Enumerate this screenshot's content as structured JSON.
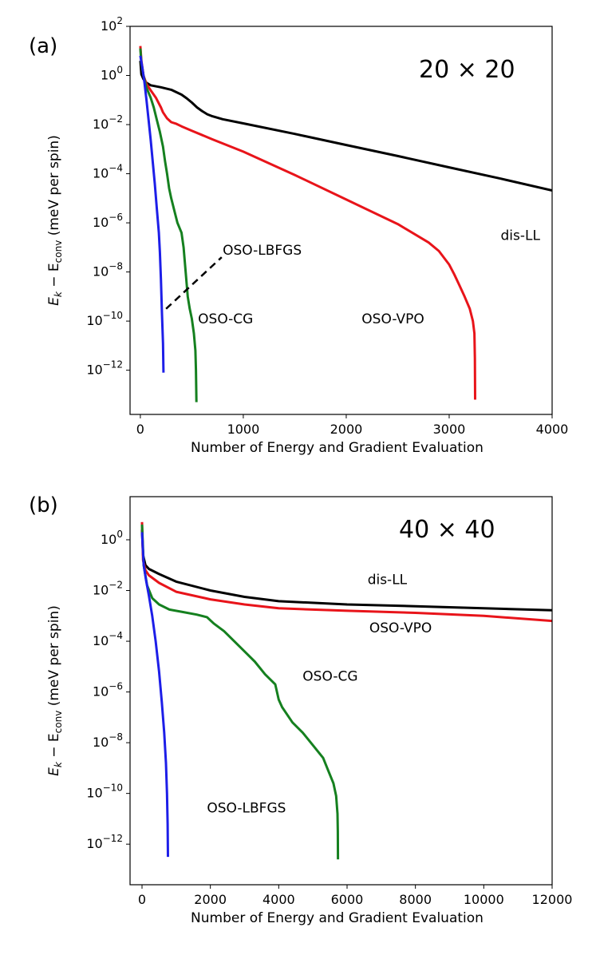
{
  "chart_data": [
    {
      "panel_label": "(a)",
      "type": "line",
      "title": "",
      "inset_text": "20 × 20",
      "xlabel": "Number of Energy and Gradient Evaluation",
      "ylabel": "E_k − E_conv (meV per spin)",
      "ylabel_parts": {
        "E": "E",
        "k": "k",
        "minus": " − E",
        "conv": "conv",
        "unit": " (meV per spin)"
      },
      "y_scale": "log",
      "xlim": [
        -100,
        4000
      ],
      "ylim_log10": [
        -13.8,
        2
      ],
      "x_ticks": [
        0,
        1000,
        2000,
        3000,
        4000
      ],
      "y_ticks": [
        {
          "base": "10",
          "exp": "2",
          "v": 2
        },
        {
          "base": "10",
          "exp": "0",
          "v": 0
        },
        {
          "base": "10",
          "exp": "−2",
          "v": -2
        },
        {
          "base": "10",
          "exp": "−4",
          "v": -4
        },
        {
          "base": "10",
          "exp": "−6",
          "v": -6
        },
        {
          "base": "10",
          "exp": "−8",
          "v": -8
        },
        {
          "base": "10",
          "exp": "−10",
          "v": -10
        },
        {
          "base": "10",
          "exp": "−12",
          "v": -12
        }
      ],
      "series": [
        {
          "name": "dis-LL",
          "color": "#000000",
          "points": [
            [
              0,
              0.6
            ],
            [
              10,
              0.05
            ],
            [
              30,
              -0.15
            ],
            [
              60,
              -0.3
            ],
            [
              100,
              -0.4
            ],
            [
              200,
              -0.48
            ],
            [
              300,
              -0.58
            ],
            [
              400,
              -0.78
            ],
            [
              450,
              -0.93
            ],
            [
              500,
              -1.1
            ],
            [
              550,
              -1.3
            ],
            [
              600,
              -1.45
            ],
            [
              650,
              -1.58
            ],
            [
              700,
              -1.66
            ],
            [
              800,
              -1.78
            ],
            [
              1000,
              -1.95
            ],
            [
              1500,
              -2.38
            ],
            [
              2000,
              -2.83
            ],
            [
              2500,
              -3.28
            ],
            [
              3000,
              -3.74
            ],
            [
              3500,
              -4.2
            ],
            [
              4000,
              -4.68
            ]
          ]
        },
        {
          "name": "OSO-VPO",
          "color": "#e8141a",
          "points": [
            [
              0,
              1.2
            ],
            [
              10,
              0.6
            ],
            [
              30,
              0.0
            ],
            [
              60,
              -0.35
            ],
            [
              100,
              -0.6
            ],
            [
              150,
              -0.9
            ],
            [
              200,
              -1.3
            ],
            [
              220,
              -1.5
            ],
            [
              260,
              -1.75
            ],
            [
              300,
              -1.9
            ],
            [
              350,
              -1.97
            ],
            [
              400,
              -2.07
            ],
            [
              500,
              -2.25
            ],
            [
              700,
              -2.6
            ],
            [
              1000,
              -3.1
            ],
            [
              1500,
              -4.05
            ],
            [
              2000,
              -5.05
            ],
            [
              2500,
              -6.05
            ],
            [
              2800,
              -6.8
            ],
            [
              2900,
              -7.15
            ],
            [
              3000,
              -7.7
            ],
            [
              3050,
              -8.1
            ],
            [
              3100,
              -8.55
            ],
            [
              3150,
              -9.0
            ],
            [
              3200,
              -9.5
            ],
            [
              3230,
              -10.0
            ],
            [
              3245,
              -10.5
            ],
            [
              3250,
              -11.5
            ],
            [
              3252,
              -13.2
            ]
          ]
        },
        {
          "name": "OSO-CG",
          "color": "#15801f",
          "points": [
            [
              0,
              1.1
            ],
            [
              10,
              0.5
            ],
            [
              30,
              0.0
            ],
            [
              60,
              -0.5
            ],
            [
              100,
              -0.9
            ],
            [
              130,
              -1.3
            ],
            [
              160,
              -1.8
            ],
            [
              190,
              -2.3
            ],
            [
              220,
              -2.9
            ],
            [
              240,
              -3.5
            ],
            [
              260,
              -4.0
            ],
            [
              280,
              -4.6
            ],
            [
              300,
              -5.0
            ],
            [
              330,
              -5.5
            ],
            [
              360,
              -6.0
            ],
            [
              400,
              -6.4
            ],
            [
              420,
              -7.0
            ],
            [
              430,
              -7.5
            ],
            [
              440,
              -8.0
            ],
            [
              450,
              -8.5
            ],
            [
              460,
              -9.0
            ],
            [
              480,
              -9.5
            ],
            [
              500,
              -9.9
            ],
            [
              520,
              -10.5
            ],
            [
              535,
              -11.2
            ],
            [
              540,
              -12.0
            ],
            [
              545,
              -13.3
            ]
          ]
        },
        {
          "name": "OSO-LBFGS",
          "color": "#1d1ee8",
          "points": [
            [
              0,
              0.8
            ],
            [
              20,
              0.3
            ],
            [
              40,
              -0.3
            ],
            [
              60,
              -1.0
            ],
            [
              80,
              -1.8
            ],
            [
              100,
              -2.6
            ],
            [
              120,
              -3.5
            ],
            [
              140,
              -4.4
            ],
            [
              160,
              -5.4
            ],
            [
              180,
              -6.4
            ],
            [
              190,
              -7.2
            ],
            [
              200,
              -8.3
            ],
            [
              210,
              -9.7
            ],
            [
              220,
              -10.9
            ],
            [
              225,
              -12.1
            ]
          ]
        }
      ],
      "annotations": [
        {
          "text": "dis-LL",
          "x": 3500,
          "y": -6.7
        },
        {
          "text": "OSO-LBFGS",
          "x": 800,
          "y": -7.3
        },
        {
          "text": "OSO-CG",
          "x": 560,
          "y": -10.1
        },
        {
          "text": "OSO-VPO",
          "x": 2150,
          "y": -10.1
        }
      ],
      "dashed_line": {
        "from": [
          250,
          -9.5
        ],
        "to": [
          790,
          -7.4
        ]
      }
    },
    {
      "panel_label": "(b)",
      "type": "line",
      "title": "",
      "inset_text": "40 × 40",
      "xlabel": "Number of Energy and Gradient Evaluation",
      "ylabel": "E_k − E_conv (meV per spin)",
      "ylabel_parts": {
        "E": "E",
        "k": "k",
        "minus": " − E",
        "conv": "conv",
        "unit": " (meV per spin)"
      },
      "y_scale": "log",
      "xlim": [
        -350,
        12000
      ],
      "ylim_log10": [
        -13.6,
        1.7
      ],
      "x_ticks": [
        0,
        2000,
        4000,
        6000,
        8000,
        10000,
        12000
      ],
      "y_ticks": [
        {
          "base": "10",
          "exp": "0",
          "v": 0
        },
        {
          "base": "10",
          "exp": "−2",
          "v": -2
        },
        {
          "base": "10",
          "exp": "−4",
          "v": -4
        },
        {
          "base": "10",
          "exp": "−6",
          "v": -6
        },
        {
          "base": "10",
          "exp": "−8",
          "v": -8
        },
        {
          "base": "10",
          "exp": "−10",
          "v": -10
        },
        {
          "base": "10",
          "exp": "−12",
          "v": -12
        }
      ],
      "series": [
        {
          "name": "dis-LL",
          "color": "#000000",
          "points": [
            [
              0,
              0.4
            ],
            [
              30,
              -0.6
            ],
            [
              100,
              -1.0
            ],
            [
              200,
              -1.15
            ],
            [
              500,
              -1.35
            ],
            [
              1000,
              -1.65
            ],
            [
              2000,
              -2.0
            ],
            [
              3000,
              -2.25
            ],
            [
              4000,
              -2.42
            ],
            [
              6000,
              -2.55
            ],
            [
              8000,
              -2.62
            ],
            [
              10000,
              -2.7
            ],
            [
              12000,
              -2.78
            ]
          ]
        },
        {
          "name": "OSO-VPO",
          "color": "#e8141a",
          "points": [
            [
              0,
              0.7
            ],
            [
              30,
              -0.8
            ],
            [
              100,
              -1.2
            ],
            [
              200,
              -1.4
            ],
            [
              500,
              -1.7
            ],
            [
              1000,
              -2.05
            ],
            [
              2000,
              -2.35
            ],
            [
              3000,
              -2.55
            ],
            [
              4000,
              -2.7
            ],
            [
              6000,
              -2.8
            ],
            [
              8000,
              -2.88
            ],
            [
              10000,
              -3.0
            ],
            [
              12000,
              -3.2
            ]
          ]
        },
        {
          "name": "OSO-CG",
          "color": "#15801f",
          "points": [
            [
              0,
              0.6
            ],
            [
              50,
              -1.0
            ],
            [
              150,
              -1.8
            ],
            [
              300,
              -2.3
            ],
            [
              500,
              -2.55
            ],
            [
              800,
              -2.75
            ],
            [
              1200,
              -2.85
            ],
            [
              1600,
              -2.95
            ],
            [
              1900,
              -3.05
            ],
            [
              2100,
              -3.3
            ],
            [
              2400,
              -3.6
            ],
            [
              2700,
              -4.0
            ],
            [
              3000,
              -4.4
            ],
            [
              3300,
              -4.8
            ],
            [
              3600,
              -5.3
            ],
            [
              3900,
              -5.7
            ],
            [
              4000,
              -6.3
            ],
            [
              4100,
              -6.6
            ],
            [
              4400,
              -7.2
            ],
            [
              4700,
              -7.6
            ],
            [
              5000,
              -8.1
            ],
            [
              5300,
              -8.6
            ],
            [
              5450,
              -9.1
            ],
            [
              5600,
              -9.6
            ],
            [
              5680,
              -10.1
            ],
            [
              5720,
              -10.8
            ],
            [
              5730,
              -11.5
            ],
            [
              5735,
              -12.6
            ]
          ]
        },
        {
          "name": "OSO-LBFGS",
          "color": "#1d1ee8",
          "points": [
            [
              0,
              0.3
            ],
            [
              50,
              -1.0
            ],
            [
              120,
              -1.6
            ],
            [
              200,
              -2.2
            ],
            [
              300,
              -3.0
            ],
            [
              400,
              -4.0
            ],
            [
              500,
              -5.2
            ],
            [
              580,
              -6.4
            ],
            [
              650,
              -7.6
            ],
            [
              700,
              -8.8
            ],
            [
              730,
              -10.0
            ],
            [
              750,
              -11.2
            ],
            [
              760,
              -12.5
            ]
          ]
        }
      ],
      "annotations": [
        {
          "text": "dis-LL",
          "x": 6600,
          "y": -1.75
        },
        {
          "text": "OSO-VPO",
          "x": 6650,
          "y": -3.65
        },
        {
          "text": "OSO-CG",
          "x": 4700,
          "y": -5.55
        },
        {
          "text": "OSO-LBFGS",
          "x": 1900,
          "y": -10.75
        }
      ]
    }
  ]
}
